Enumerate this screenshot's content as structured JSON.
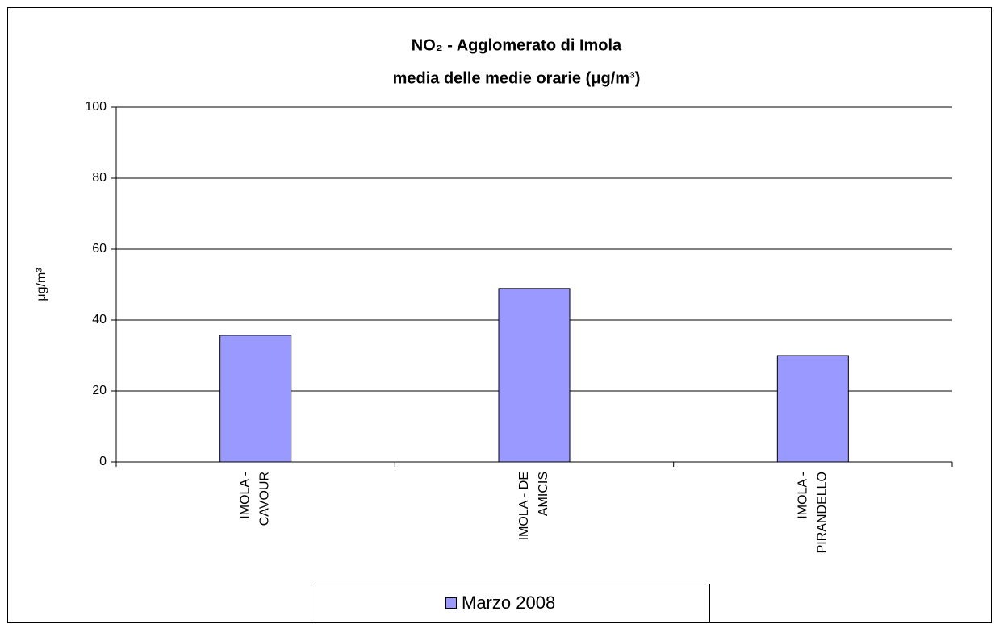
{
  "chart_data": {
    "type": "bar",
    "title": [
      "NO₂ - Agglomerato di Imola",
      "media delle medie orarie (μg/m³)"
    ],
    "y_label": "μg/m³",
    "categories": [
      "IMOLA -\nCAVOUR",
      "IMOLA - DE\nAMICIS",
      "IMOLA -\nPIRANDELLO"
    ],
    "series": [
      {
        "name": "Marzo 2008",
        "color": "#9999ff",
        "values": [
          35.7,
          48.9,
          30.0
        ]
      }
    ],
    "ylim": [
      0,
      100
    ],
    "yticks": [
      0,
      20,
      40,
      60,
      80,
      100
    ],
    "grid": true,
    "legend": "bottom"
  }
}
